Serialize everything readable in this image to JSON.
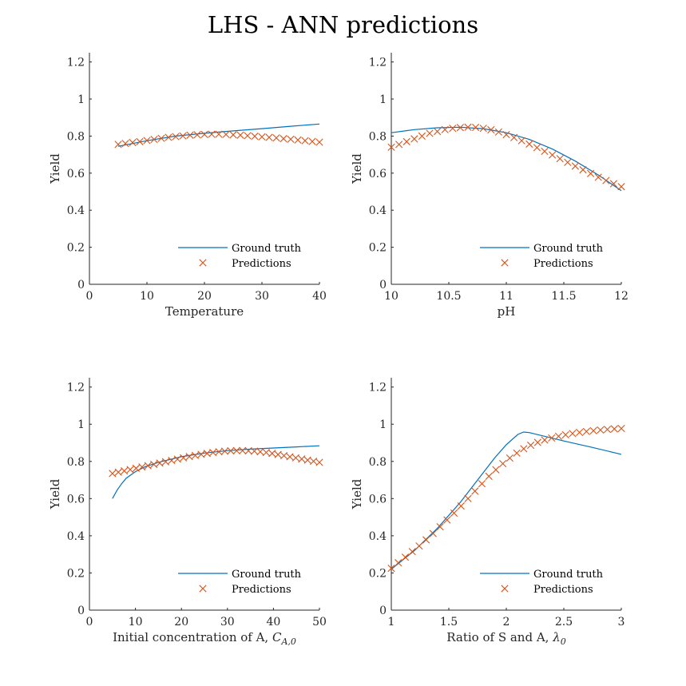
{
  "figure_title": "LHS - ANN predictions",
  "colors": {
    "ground_truth": "#0072BD",
    "predictions": "#D95319",
    "axis": "#262626"
  },
  "chart_data": [
    {
      "type": "line",
      "title": "",
      "xlabel": "Temperature",
      "ylabel": "Yield",
      "xlim": [
        0,
        40
      ],
      "ylim": [
        0,
        1.25
      ],
      "xticks": [
        "0",
        "10",
        "20",
        "30",
        "40"
      ],
      "yticks": [
        "0",
        "0.2",
        "0.4",
        "0.6",
        "0.8",
        "1",
        "1.2"
      ],
      "grid": false,
      "legend_position": "bottom-right",
      "series": [
        {
          "name": "Ground truth",
          "style": "line",
          "x": [
            5,
            10,
            15,
            20,
            25,
            30,
            35,
            40
          ],
          "y": [
            0.745,
            0.775,
            0.8,
            0.815,
            0.828,
            0.84,
            0.853,
            0.865
          ]
        },
        {
          "name": "Predictions",
          "style": "marker",
          "x": [
            5,
            6.25,
            7.5,
            8.75,
            10,
            11.25,
            12.5,
            13.75,
            15,
            16.25,
            17.5,
            18.75,
            20,
            21.25,
            22.5,
            23.75,
            25,
            26.25,
            27.5,
            28.75,
            30,
            31.25,
            32.5,
            33.75,
            35,
            36.25,
            37.5,
            38.75,
            40
          ],
          "y": [
            0.755,
            0.76,
            0.765,
            0.77,
            0.776,
            0.782,
            0.788,
            0.793,
            0.797,
            0.801,
            0.805,
            0.807,
            0.809,
            0.81,
            0.81,
            0.809,
            0.807,
            0.805,
            0.802,
            0.799,
            0.796,
            0.793,
            0.79,
            0.786,
            0.783,
            0.779,
            0.775,
            0.771,
            0.767
          ]
        }
      ]
    },
    {
      "type": "line",
      "title": "",
      "xlabel": "pH",
      "ylabel": "Yield",
      "xlim": [
        10,
        12
      ],
      "ylim": [
        0,
        1.25
      ],
      "xticks": [
        "10",
        "10.5",
        "11",
        "11.5",
        "12"
      ],
      "yticks": [
        "0",
        "0.2",
        "0.4",
        "0.6",
        "0.8",
        "1",
        "1.2"
      ],
      "grid": false,
      "legend_position": "bottom-right",
      "series": [
        {
          "name": "Ground truth",
          "style": "line",
          "x": [
            10,
            10.2,
            10.4,
            10.6,
            10.8,
            11.0,
            11.2,
            11.4,
            11.6,
            11.8,
            12.0
          ],
          "y": [
            0.818,
            0.835,
            0.845,
            0.848,
            0.84,
            0.818,
            0.782,
            0.73,
            0.665,
            0.59,
            0.505
          ]
        },
        {
          "name": "Predictions",
          "style": "marker",
          "x": [
            10,
            10.0667,
            10.1333,
            10.2,
            10.2667,
            10.3333,
            10.4,
            10.4667,
            10.5333,
            10.6,
            10.6667,
            10.7333,
            10.8,
            10.8667,
            10.9333,
            11.0,
            11.0667,
            11.1333,
            11.2,
            11.2667,
            11.3333,
            11.4,
            11.4667,
            11.5333,
            11.6,
            11.6667,
            11.7333,
            11.8,
            11.8667,
            11.9333,
            12.0
          ],
          "y": [
            0.74,
            0.755,
            0.77,
            0.785,
            0.8,
            0.815,
            0.825,
            0.835,
            0.842,
            0.846,
            0.848,
            0.847,
            0.842,
            0.834,
            0.822,
            0.808,
            0.792,
            0.775,
            0.757,
            0.738,
            0.718,
            0.698,
            0.678,
            0.658,
            0.638,
            0.618,
            0.598,
            0.578,
            0.56,
            0.543,
            0.527
          ]
        }
      ]
    },
    {
      "type": "line",
      "title": "",
      "xlabel": "Initial concentration of A, ",
      "xlabel_math": "C",
      "xlabel_math_sub": "A,0",
      "ylabel": "Yield",
      "xlim": [
        0,
        50
      ],
      "ylim": [
        0,
        1.25
      ],
      "xticks": [
        "0",
        "10",
        "20",
        "30",
        "40",
        "50"
      ],
      "yticks": [
        "0",
        "0.2",
        "0.4",
        "0.6",
        "0.8",
        "1",
        "1.2"
      ],
      "grid": false,
      "legend_position": "bottom-right",
      "series": [
        {
          "name": "Ground truth",
          "style": "line",
          "x": [
            5,
            6,
            7,
            8,
            10,
            12,
            15,
            20,
            25,
            30,
            35,
            40,
            45,
            50
          ],
          "y": [
            0.6,
            0.645,
            0.68,
            0.71,
            0.745,
            0.77,
            0.795,
            0.825,
            0.845,
            0.858,
            0.866,
            0.872,
            0.878,
            0.884
          ]
        },
        {
          "name": "Predictions",
          "style": "marker",
          "x": [
            5,
            6.2857,
            7.5714,
            8.8571,
            10.1429,
            11.4286,
            12.7143,
            14,
            15.2857,
            16.5714,
            17.8571,
            19.1429,
            20.4286,
            21.7143,
            23,
            24.2857,
            25.5714,
            26.8571,
            28.1429,
            29.4286,
            30.7143,
            32,
            33.2857,
            34.5714,
            35.8571,
            37.1429,
            38.4286,
            39.7143,
            41,
            42.2857,
            43.5714,
            44.8571,
            46.1429,
            47.4286,
            48.7143,
            50
          ],
          "y": [
            0.735,
            0.742,
            0.749,
            0.756,
            0.763,
            0.77,
            0.777,
            0.784,
            0.791,
            0.798,
            0.805,
            0.812,
            0.819,
            0.826,
            0.832,
            0.838,
            0.843,
            0.848,
            0.852,
            0.855,
            0.857,
            0.858,
            0.858,
            0.857,
            0.855,
            0.852,
            0.848,
            0.843,
            0.837,
            0.831,
            0.825,
            0.819,
            0.813,
            0.807,
            0.801,
            0.795
          ]
        }
      ]
    },
    {
      "type": "line",
      "title": "",
      "xlabel": "Ratio of S and A, ",
      "xlabel_math": "λ",
      "xlabel_math_sub": "0",
      "ylabel": "Yield",
      "xlim": [
        1,
        3
      ],
      "ylim": [
        0,
        1.25
      ],
      "xticks": [
        "1",
        "1.5",
        "2",
        "2.5",
        "3"
      ],
      "yticks": [
        "0",
        "0.2",
        "0.4",
        "0.6",
        "0.8",
        "1",
        "1.2"
      ],
      "grid": false,
      "legend_position": "bottom-right",
      "series": [
        {
          "name": "Ground truth",
          "style": "line",
          "x": [
            1,
            1.1,
            1.2,
            1.3,
            1.4,
            1.5,
            1.6,
            1.7,
            1.8,
            1.9,
            2.0,
            2.1,
            2.15,
            2.2,
            2.3,
            2.5,
            2.75,
            3.0
          ],
          "y": [
            0.22,
            0.27,
            0.32,
            0.38,
            0.44,
            0.51,
            0.58,
            0.66,
            0.74,
            0.82,
            0.89,
            0.945,
            0.958,
            0.955,
            0.94,
            0.91,
            0.875,
            0.838
          ]
        },
        {
          "name": "Predictions",
          "style": "marker",
          "x": [
            1,
            1.0606,
            1.1212,
            1.1818,
            1.2424,
            1.303,
            1.3636,
            1.4242,
            1.4848,
            1.5455,
            1.6061,
            1.6667,
            1.7273,
            1.7879,
            1.8485,
            1.9091,
            1.9697,
            2.0303,
            2.0909,
            2.1515,
            2.2121,
            2.2727,
            2.3333,
            2.3939,
            2.4545,
            2.5152,
            2.5758,
            2.6364,
            2.697,
            2.7576,
            2.8182,
            2.8788,
            2.9394,
            3.0
          ],
          "y": [
            0.225,
            0.255,
            0.285,
            0.315,
            0.345,
            0.378,
            0.412,
            0.448,
            0.485,
            0.522,
            0.56,
            0.6,
            0.64,
            0.68,
            0.72,
            0.755,
            0.788,
            0.818,
            0.845,
            0.868,
            0.887,
            0.902,
            0.915,
            0.926,
            0.935,
            0.943,
            0.95,
            0.956,
            0.961,
            0.965,
            0.969,
            0.972,
            0.975,
            0.977
          ]
        }
      ]
    }
  ]
}
